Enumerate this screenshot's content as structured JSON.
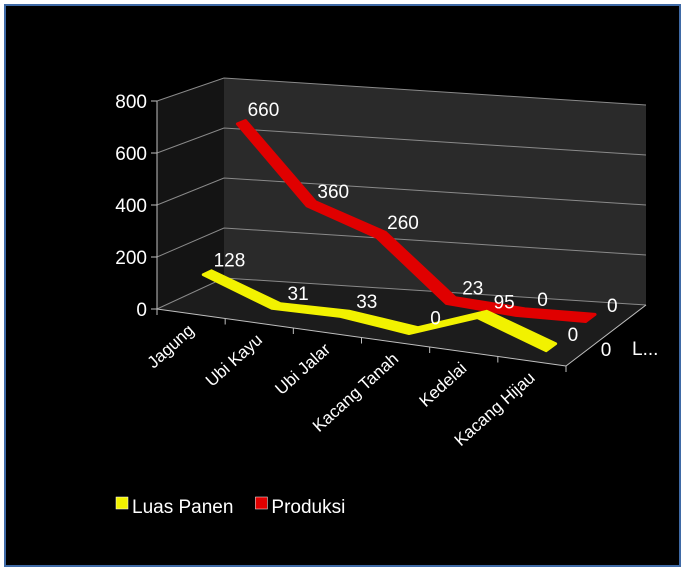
{
  "chart_data": {
    "type": "line",
    "categories": [
      "Jagung",
      "Ubi Kayu",
      "Ubi Jalar",
      "Kacang Tanah",
      "Kedelai",
      "Kacang Hijau"
    ],
    "series": [
      {
        "name": "Luas Panen",
        "values": [
          128,
          31,
          33,
          0,
          95,
          0
        ],
        "labels": [
          "128",
          "31",
          "33",
          "0",
          "95",
          "0"
        ],
        "color": "#f2f200"
      },
      {
        "name": "Produksi",
        "values": [
          660,
          360,
          260,
          23,
          0,
          0
        ],
        "labels": [
          "660",
          "360",
          "260",
          "23",
          "0",
          "0"
        ],
        "color": "#e00000"
      }
    ],
    "ylim": [
      0,
      800
    ],
    "yticks": [
      "0",
      "200",
      "400",
      "600",
      "800"
    ],
    "depth_axis_label": "L...",
    "depth_axis_tick": "0",
    "grid": true,
    "legend": "bottom-left",
    "style": "3d-line"
  }
}
